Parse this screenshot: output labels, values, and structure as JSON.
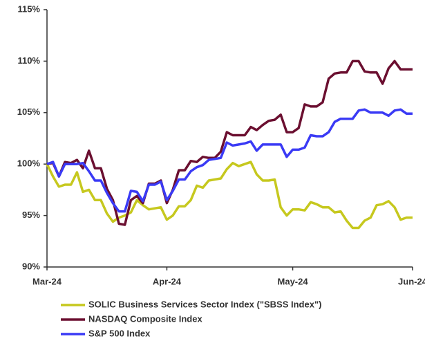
{
  "chart_data": {
    "type": "line",
    "categories": [
      "Mar-24",
      null,
      null,
      null,
      null,
      null,
      null,
      null,
      null,
      null,
      null,
      null,
      null,
      null,
      null,
      null,
      null,
      null,
      null,
      null,
      "Apr-24",
      null,
      null,
      null,
      null,
      null,
      null,
      null,
      null,
      null,
      null,
      null,
      null,
      null,
      null,
      null,
      null,
      null,
      null,
      null,
      null,
      "May-24",
      null,
      null,
      null,
      null,
      null,
      null,
      null,
      null,
      null,
      null,
      null,
      null,
      null,
      null,
      null,
      null,
      null,
      null,
      null,
      "Jun-24"
    ],
    "series": [
      {
        "name": "SOLIC Business Services Sector Index (\"SBSS Index\")",
        "color": "#c6c81e",
        "values": [
          100,
          98.8,
          97.8,
          98.0,
          98.0,
          99.2,
          97.3,
          97.5,
          96.5,
          96.5,
          95.2,
          94.4,
          94.8,
          95.0,
          95.3,
          96.5,
          96.0,
          95.6,
          95.7,
          95.8,
          94.6,
          95.0,
          95.9,
          95.9,
          96.5,
          97.9,
          97.7,
          98.4,
          98.5,
          98.6,
          99.5,
          100.1,
          99.8,
          100.0,
          100.2,
          99.0,
          98.4,
          98.4,
          98.5,
          95.8,
          95.0,
          95.6,
          95.6,
          95.5,
          96.3,
          96.1,
          95.8,
          95.8,
          95.3,
          95.4,
          94.5,
          93.8,
          93.8,
          94.5,
          94.8,
          96.0,
          96.1,
          96.4,
          95.8,
          94.6,
          94.8,
          94.8
        ]
      },
      {
        "name": "NASDAQ Composite Index",
        "color": "#6b0f30",
        "values": [
          100,
          100.1,
          98.8,
          100.2,
          100.1,
          100.4,
          99.6,
          101.3,
          99.6,
          99.6,
          97.6,
          96.5,
          94.2,
          94.1,
          96.5,
          96.9,
          96.2,
          98.1,
          98.1,
          98.4,
          96.2,
          97.5,
          99.4,
          99.4,
          100.3,
          100.2,
          100.7,
          100.6,
          100.6,
          101.2,
          103.1,
          102.8,
          102.8,
          102.8,
          103.6,
          103.3,
          103.8,
          104.2,
          104.3,
          104.8,
          103.1,
          103.1,
          103.5,
          105.8,
          105.6,
          105.6,
          106.0,
          108.3,
          108.8,
          108.9,
          108.9,
          110.0,
          110.0,
          109.0,
          108.9,
          108.9,
          107.8,
          109.3,
          110.0,
          109.2,
          109.2,
          109.2
        ]
      },
      {
        "name": "S&P 500 Index",
        "color": "#3a3af5",
        "values": [
          100,
          100.2,
          98.8,
          100,
          100,
          100,
          100.1,
          99.3,
          98.4,
          98.4,
          97.2,
          96.2,
          95.4,
          95.4,
          97.4,
          97.3,
          96.4,
          98.0,
          98.0,
          98.3,
          96.5,
          97.4,
          98.5,
          98.5,
          99.3,
          99.7,
          99.9,
          100.4,
          100.5,
          100.6,
          102.1,
          101.8,
          101.9,
          102.0,
          102.2,
          101.3,
          101.9,
          101.9,
          101.9,
          101.9,
          100.7,
          101.4,
          101.4,
          101.6,
          102.8,
          102.7,
          102.7,
          103.1,
          104.1,
          104.4,
          104.4,
          104.4,
          105.2,
          105.3,
          105.0,
          105.0,
          105.0,
          104.7,
          105.2,
          105.3,
          104.9,
          104.9
        ]
      }
    ],
    "ylim": [
      90,
      115
    ],
    "yticks": [
      {
        "value": 90,
        "label": "90%"
      },
      {
        "value": 95,
        "label": "95%"
      },
      {
        "value": 100,
        "label": "100%"
      },
      {
        "value": 105,
        "label": "105%"
      },
      {
        "value": 110,
        "label": "110%"
      },
      {
        "value": 115,
        "label": "115%"
      }
    ],
    "grid": false,
    "legend": "bottom"
  }
}
